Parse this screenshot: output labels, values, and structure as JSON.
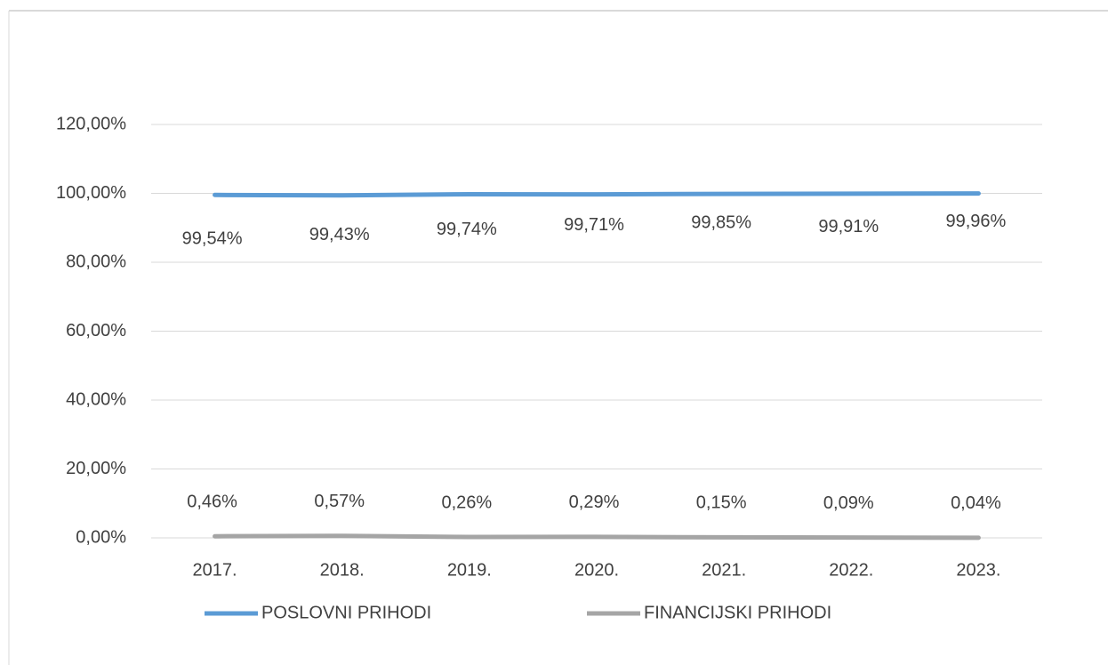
{
  "chart_data": {
    "type": "line",
    "categories": [
      "2017.",
      "2018.",
      "2019.",
      "2020.",
      "2021.",
      "2022.",
      "2023."
    ],
    "series": [
      {
        "name": "POSLOVNI PRIHODI",
        "color": "#5b9bd5",
        "values": [
          99.54,
          99.43,
          99.74,
          99.71,
          99.85,
          99.91,
          99.96
        ],
        "value_labels": [
          "99,54%",
          "99,43%",
          "99,74%",
          "99,71%",
          "99,85%",
          "99,91%",
          "99,96%"
        ]
      },
      {
        "name": "FINANCIJSKI PRIHODI",
        "color": "#a5a5a5",
        "values": [
          0.46,
          0.57,
          0.26,
          0.29,
          0.15,
          0.09,
          0.04
        ],
        "value_labels": [
          "0,46%",
          "0,57%",
          "0,26%",
          "0,29%",
          "0,15%",
          "0,09%",
          "0,04%"
        ]
      }
    ],
    "ylim": [
      0,
      120
    ],
    "yticks": [
      {
        "value": 0,
        "label": "0,00%"
      },
      {
        "value": 20,
        "label": "20,00%"
      },
      {
        "value": 40,
        "label": "40,00%"
      },
      {
        "value": 60,
        "label": "60,00%"
      },
      {
        "value": 80,
        "label": "80,00%"
      },
      {
        "value": 100,
        "label": "100,00%"
      },
      {
        "value": 120,
        "label": "120,00%"
      }
    ],
    "grid": true,
    "legend": "bottom"
  }
}
